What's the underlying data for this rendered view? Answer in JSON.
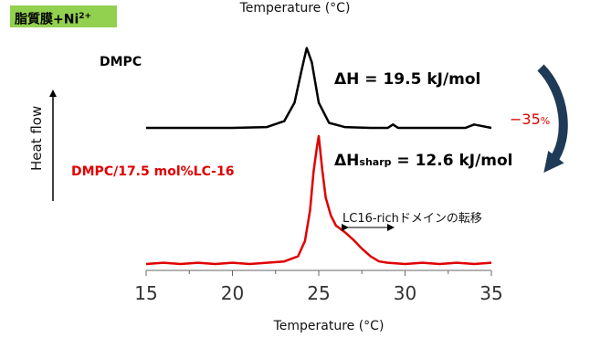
{
  "membrane_label": "脂質膜+Ni",
  "membrane_ion_charge": "2+",
  "chart_data": {
    "type": "line",
    "xlabel_top": "Temperature (°C)",
    "xlabel": "Temperature (°C)",
    "ylabel": "Heat flow",
    "xlim": [
      15,
      35
    ],
    "xticks": [
      15,
      20,
      25,
      30,
      35
    ],
    "grid": false,
    "series": [
      {
        "name": "DMPC",
        "color": "#000000",
        "x": [
          15.0,
          20.0,
          22.0,
          23.0,
          23.6,
          24.0,
          24.3,
          24.6,
          25.0,
          25.6,
          26.5,
          28.0,
          29.0,
          29.3,
          29.6,
          30.5,
          32.0,
          33.5,
          34.0,
          35.0
        ],
        "y": [
          0.0,
          0.0,
          0.01,
          0.08,
          0.3,
          0.68,
          0.95,
          0.78,
          0.3,
          0.06,
          0.01,
          0.0,
          0.0,
          0.04,
          0.0,
          0.0,
          0.0,
          0.0,
          0.04,
          0.0
        ]
      },
      {
        "name": "DMPC/17.5 mol%LC-16",
        "color": "#e00000",
        "x": [
          15.0,
          16.0,
          17.0,
          18.0,
          19.0,
          20.0,
          21.0,
          22.0,
          23.0,
          23.8,
          24.2,
          24.5,
          24.7,
          24.9,
          25.0,
          25.2,
          25.4,
          25.7,
          26.0,
          26.5,
          27.0,
          27.5,
          28.0,
          28.5,
          29.0,
          30.0,
          31.0,
          32.0,
          33.0,
          34.0,
          35.0
        ],
        "y": [
          0.0,
          0.01,
          0.0,
          0.01,
          0.0,
          0.01,
          0.0,
          0.01,
          0.02,
          0.06,
          0.18,
          0.42,
          0.72,
          0.92,
          1.0,
          0.74,
          0.52,
          0.38,
          0.3,
          0.25,
          0.19,
          0.12,
          0.06,
          0.02,
          0.01,
          0.0,
          0.01,
          0.0,
          0.01,
          0.0,
          0.01
        ]
      }
    ],
    "annotations": {
      "dh_label": "ΔH = 19.5 kJ/mol",
      "dh_sharp_main": "ΔH",
      "dh_sharp_sub": "sharp",
      "dh_sharp_value": "= 12.6 kJ/mol",
      "domain_transition": "LC16-richドメインの転移",
      "percent_change": "−35",
      "percent_unit": "%"
    }
  }
}
